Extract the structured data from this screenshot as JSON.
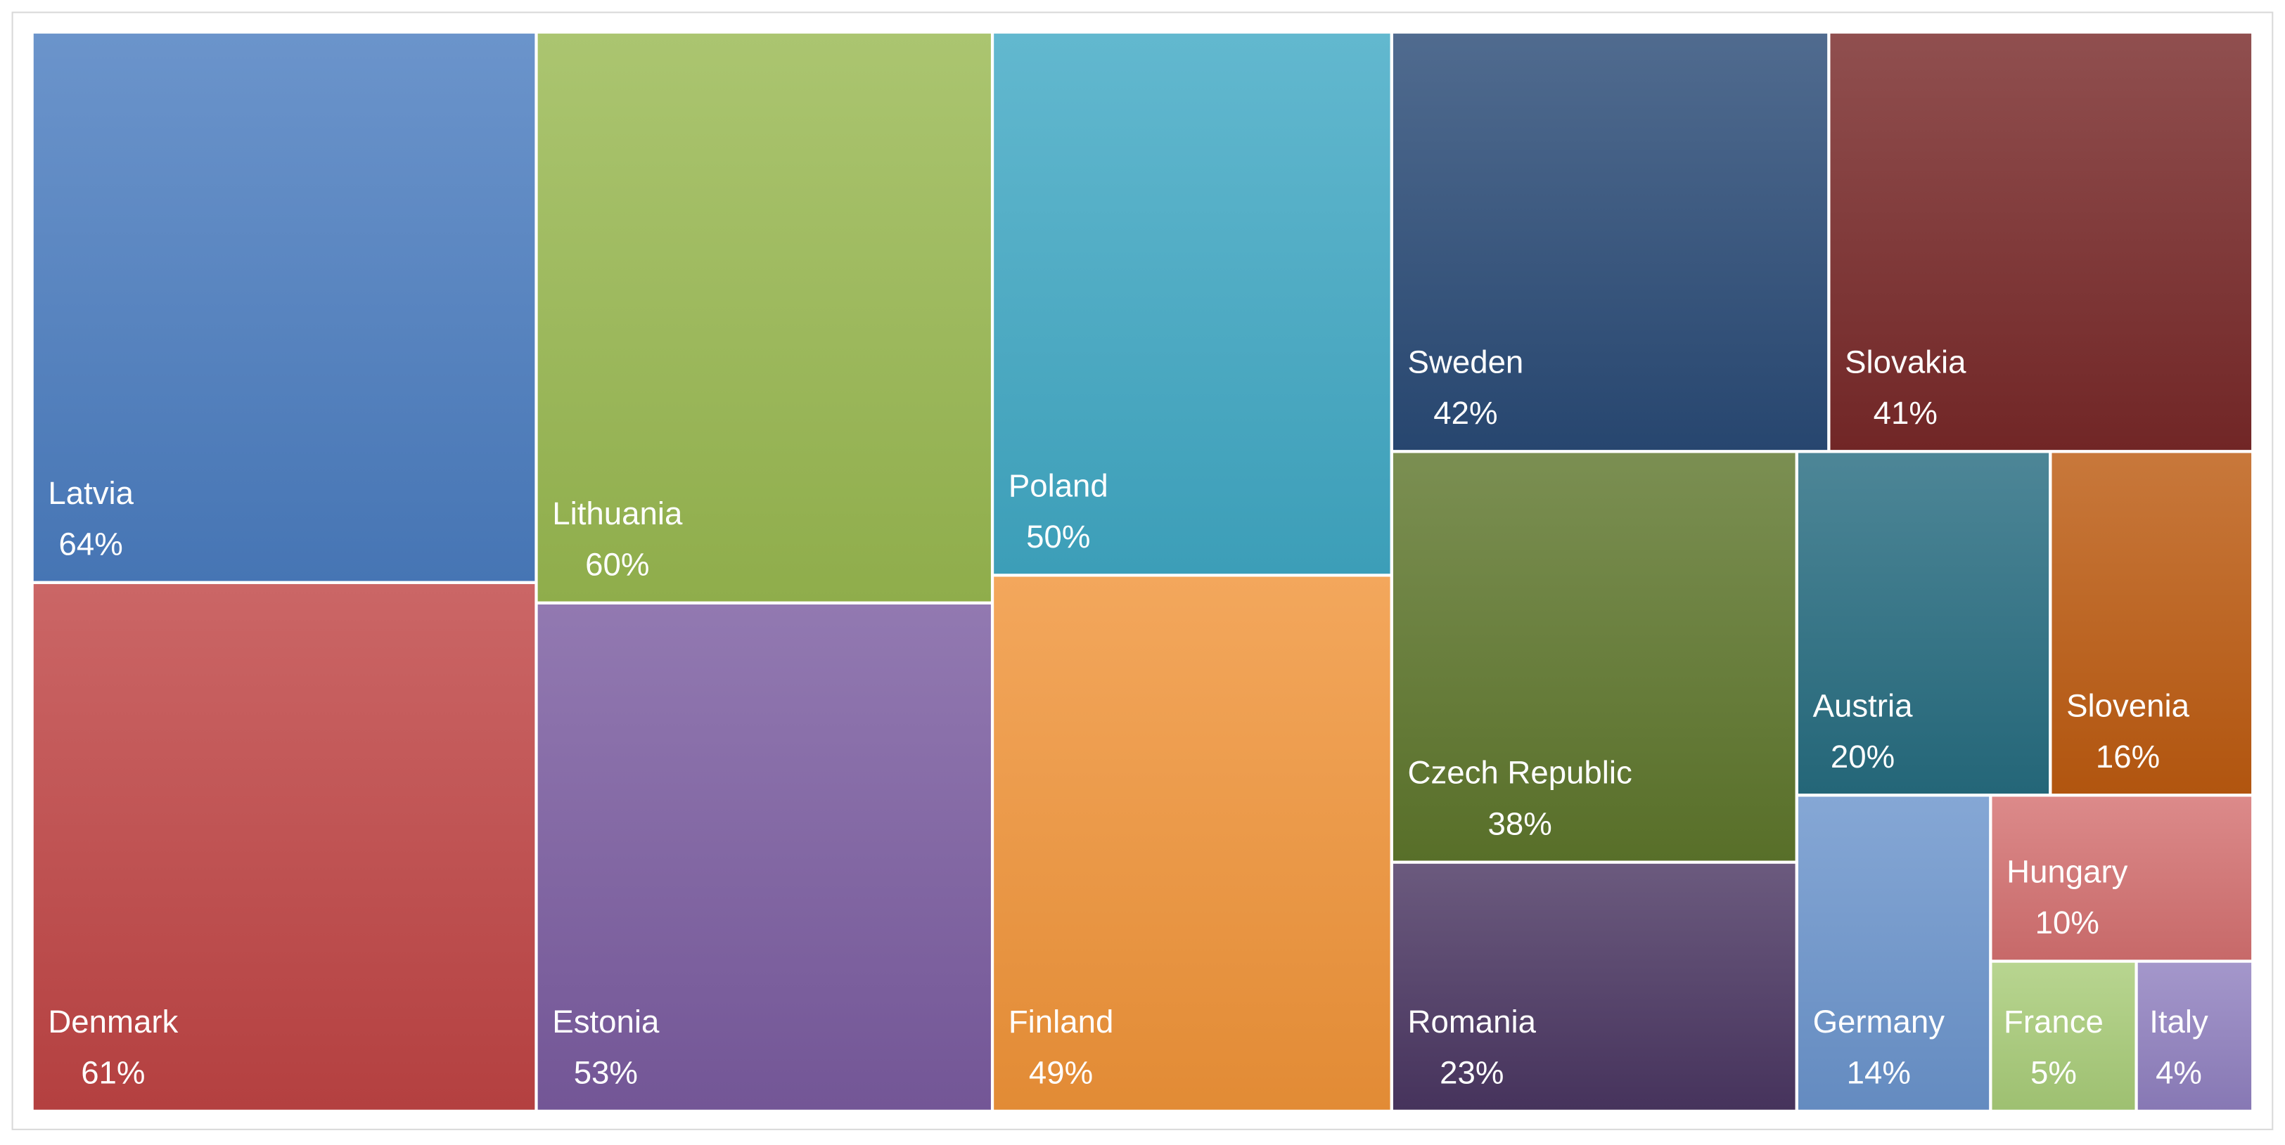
{
  "chart_data": {
    "type": "treemap",
    "title": "",
    "items": [
      {
        "name": "Latvia",
        "value": 64,
        "label": "64%",
        "color": "#4a7cc0"
      },
      {
        "name": "Denmark",
        "value": 61,
        "label": "61%",
        "color": "#c04444"
      },
      {
        "name": "Lithuania",
        "value": 60,
        "label": "60%",
        "color": "#98b850"
      },
      {
        "name": "Estonia",
        "value": 53,
        "label": "53%",
        "color": "#7a5ca0"
      },
      {
        "name": "Poland",
        "value": 50,
        "label": "50%",
        "color": "#40a8c4"
      },
      {
        "name": "Finland",
        "value": 49,
        "label": "49%",
        "color": "#f09438"
      },
      {
        "name": "Sweden",
        "value": 42,
        "label": "42%",
        "color": "#2a4a76"
      },
      {
        "name": "Slovakia",
        "value": 41,
        "label": "41%",
        "color": "#782828"
      },
      {
        "name": "Czech Republic",
        "value": 38,
        "label": "38%",
        "color": "#5e762c"
      },
      {
        "name": "Romania",
        "value": 23,
        "label": "23%",
        "color": "#4a3662"
      },
      {
        "name": "Austria",
        "value": 20,
        "label": "20%",
        "color": "#266c80"
      },
      {
        "name": "Slovenia",
        "value": 16,
        "label": "16%",
        "color": "#bc5a10"
      },
      {
        "name": "Germany",
        "value": 14,
        "label": "14%",
        "color": "#6a94cc"
      },
      {
        "name": "Hungary",
        "value": 10,
        "label": "10%",
        "color": "#d47070"
      },
      {
        "name": "France",
        "value": 5,
        "label": "5%",
        "color": "#a8cc78"
      },
      {
        "name": "Italy",
        "value": 4,
        "label": "4%",
        "color": "#9080c0"
      }
    ]
  }
}
